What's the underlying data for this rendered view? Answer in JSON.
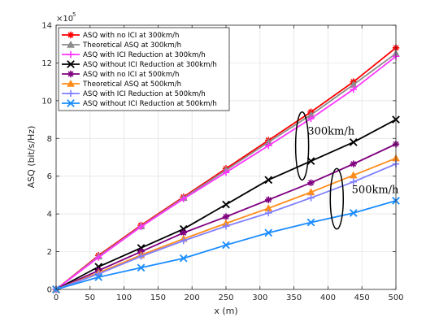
{
  "chart_data": {
    "type": "line",
    "title": "",
    "xlabel": "x (m)",
    "ylabel": "ASQ (bit/s/Hz)",
    "xlim": [
      0,
      500
    ],
    "ylim": [
      0,
      1400000
    ],
    "xticks": [
      0,
      50,
      100,
      150,
      200,
      250,
      300,
      350,
      400,
      450,
      500
    ],
    "yticks": [
      0,
      200000,
      400000,
      600000,
      800000,
      1000000,
      1200000,
      1400000
    ],
    "ytick_labels": [
      "0",
      "2",
      "4",
      "6",
      "8",
      "10",
      "12",
      "14"
    ],
    "y_exponent_base": "×10",
    "y_exponent_power": "5",
    "grid": true,
    "legend_position": "top-left",
    "x": [
      0,
      62.5,
      125,
      187.5,
      250,
      312.5,
      375,
      437.5,
      500
    ],
    "series": [
      {
        "name": "ASQ with no ICI at 300km/h",
        "color": "#ff0000",
        "marker": "asterisk",
        "values": [
          0,
          180000,
          340000,
          490000,
          640000,
          790000,
          940000,
          1100000,
          1280000
        ]
      },
      {
        "name": "Theoretical ASQ at 300km/h",
        "color": "#8c8c8c",
        "marker": "triangle",
        "values": [
          0,
          175000,
          335000,
          485000,
          632000,
          780000,
          925000,
          1085000,
          1250000
        ]
      },
      {
        "name": "ASQ with ICI Reduction at 300km/h",
        "color": "#ff33ff",
        "marker": "plus",
        "values": [
          0,
          170000,
          332000,
          480000,
          620000,
          762000,
          905000,
          1060000,
          1235000
        ]
      },
      {
        "name": "ASQ without ICI Reduction at 300km/h",
        "color": "#000000",
        "marker": "x",
        "values": [
          0,
          120000,
          220000,
          320000,
          450000,
          580000,
          680000,
          780000,
          900000
        ]
      },
      {
        "name": "ASQ with no ICI at 500km/h",
        "color": "#800080",
        "marker": "asterisk",
        "values": [
          0,
          100000,
          200000,
          300000,
          385000,
          475000,
          565000,
          665000,
          770000
        ]
      },
      {
        "name": "Theoretical ASQ at 500km/h",
        "color": "#ff8c1a",
        "marker": "triangle",
        "values": [
          0,
          88000,
          182000,
          268000,
          350000,
          430000,
          515000,
          605000,
          695000
        ]
      },
      {
        "name": "ASQ with ICI Reduction at 500km/h",
        "color": "#8080ff",
        "marker": "plus",
        "values": [
          0,
          82000,
          175000,
          258000,
          335000,
          405000,
          485000,
          570000,
          665000
        ]
      },
      {
        "name": "ASQ without ICI Reduction at 500km/h",
        "color": "#1a8cff",
        "marker": "x",
        "values": [
          0,
          65000,
          115000,
          165000,
          235000,
          300000,
          355000,
          405000,
          470000
        ]
      }
    ],
    "annotations": [
      {
        "text": "300km/h",
        "x": 370,
        "y": 820000
      },
      {
        "text": "500km/h",
        "x": 435,
        "y": 510000
      }
    ],
    "ellipses": [
      {
        "cx": 362,
        "cy": 760000,
        "rx": 8,
        "ry": 180000
      },
      {
        "cx": 413,
        "cy": 480000,
        "rx": 8,
        "ry": 160000
      }
    ]
  }
}
